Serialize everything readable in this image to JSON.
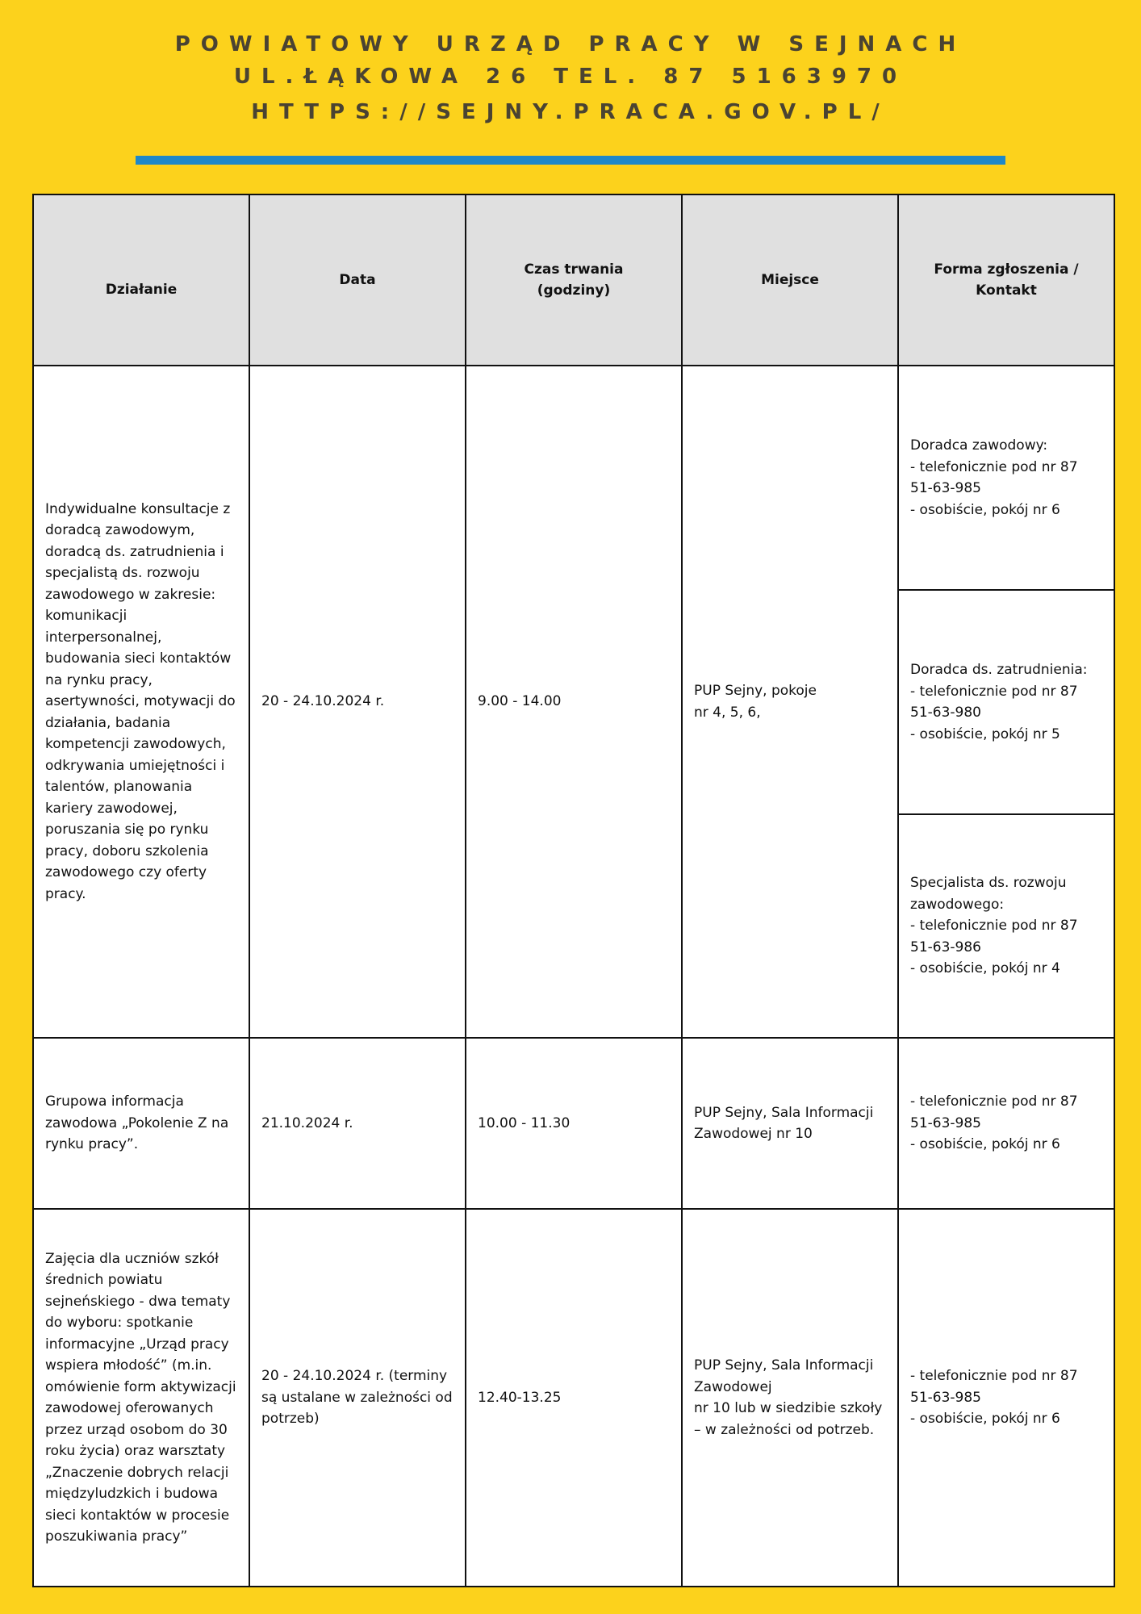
{
  "header": {
    "line1": "POWIATOWY URZĄD PRACY W SEJNACH",
    "line2": "UL.ŁĄKOWA 26 TEL. 87 5163970",
    "line3": "HTTPS://SEJNY.PRACA.GOV.PL/",
    "accent_color": "#1e88c8",
    "background_color": "#fcd21c"
  },
  "table": {
    "columns": [
      "Działanie",
      "Data",
      "Czas trwania\n(godziny)",
      "Miejsce",
      "Forma zgłoszenia /\nKontakt"
    ],
    "rows": [
      {
        "dzialanie": "Indywidualne konsultacje z doradcą zawodowym, doradcą ds. zatrudnienia i specjalistą ds. rozwoju zawodowego w zakresie: komunikacji interpersonalnej, budowania sieci kontaktów na rynku pracy, asertywności, motywacji do działania, badania kompetencji zawodowych, odkrywania umiejętności i talentów, planowania kariery zawodowej, poruszania się po rynku pracy, doboru szkolenia zawodowego czy oferty pracy.",
        "data": "20 - 24.10.2024 r.",
        "czas": "9.00 - 14.00",
        "miejsce": "PUP Sejny, pokoje\nnr 4, 5, 6,",
        "kontakt": [
          "Doradca zawodowy:\n- telefonicznie pod nr 87 51-63-985\n- osobiście, pokój nr 6",
          "Doradca ds. zatrudnienia:\n- telefonicznie pod nr 87 51-63-980\n- osobiście, pokój nr 5",
          "Specjalista ds. rozwoju zawodowego:\n- telefonicznie pod nr 87 51-63-986\n- osobiście, pokój nr 4"
        ]
      },
      {
        "dzialanie": "Grupowa informacja zawodowa „Pokolenie Z na rynku pracy”.",
        "data": "21.10.2024 r.",
        "czas": "10.00 - 11.30",
        "miejsce": "PUP Sejny, Sala Informacji Zawodowej nr 10",
        "kontakt": "- telefonicznie pod nr 87 51-63-985\n- osobiście, pokój nr 6"
      },
      {
        "dzialanie": "Zajęcia dla uczniów szkół średnich powiatu sejneńskiego - dwa tematy do wyboru: spotkanie informacyjne „Urząd pracy wspiera młodość” (m.in. omówienie form aktywizacji zawodowej oferowanych przez urząd osobom do 30 roku życia) oraz warsztaty „Znaczenie dobrych relacji międzyludzkich i budowa sieci kontaktów w procesie poszukiwania pracy”",
        "data": "20 - 24.10.2024 r. (terminy są ustalane w zależności od potrzeb)",
        "czas": "12.40-13.25",
        "miejsce": "PUP Sejny, Sala Informacji Zawodowej\nnr 10 lub w siedzibie szkoły – w zależności od potrzeb.",
        "kontakt": "- telefonicznie pod nr 87 51-63-985\n- osobiście, pokój nr 6"
      }
    ]
  }
}
